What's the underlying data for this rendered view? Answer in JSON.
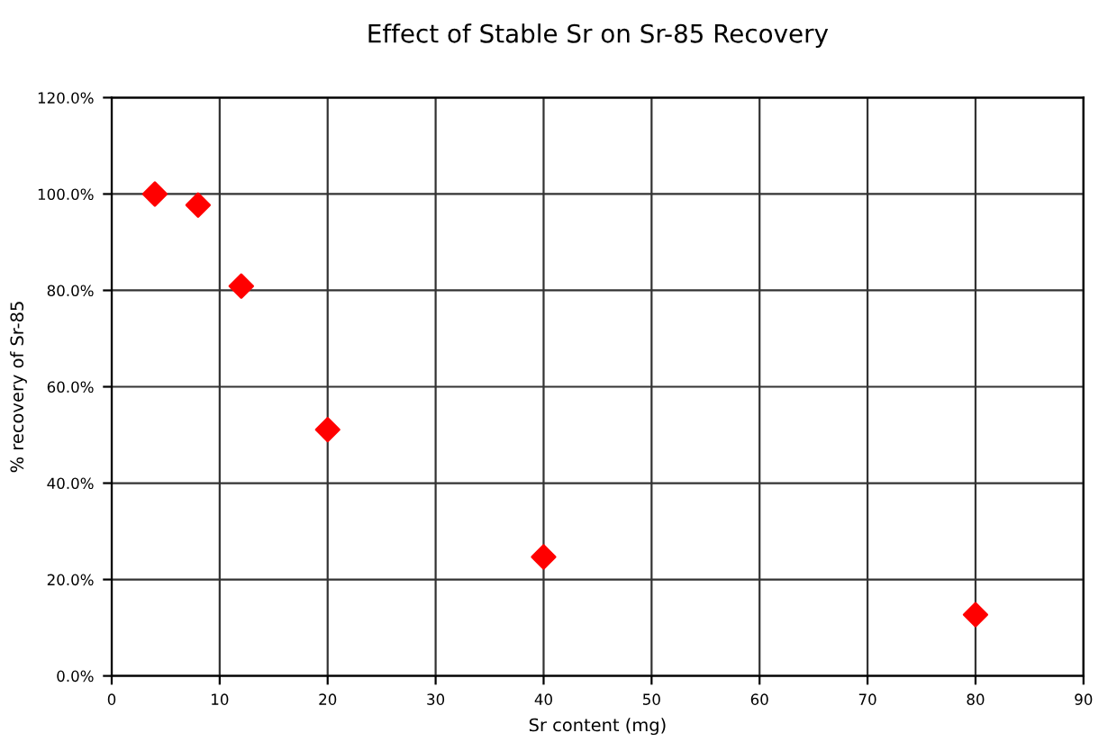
{
  "chart_data": {
    "type": "scatter",
    "title": "Effect of Stable Sr on Sr-85 Recovery",
    "xlabel": "Sr content (mg)",
    "ylabel": "% recovery of Sr-85",
    "x": [
      4,
      8,
      12,
      20,
      40,
      80
    ],
    "series": [
      {
        "color": "#ff0000",
        "values": [
          100,
          97.7,
          80.9,
          51.1,
          24.7,
          12.7
        ]
      }
    ],
    "xlim": [
      0,
      90
    ],
    "xticks": [
      0,
      10,
      20,
      30,
      40,
      50,
      60,
      70,
      80,
      90
    ],
    "ylim": [
      0,
      120
    ],
    "yticks": [
      {
        "value": 0,
        "label": "0.0%"
      },
      {
        "value": 20,
        "label": "20.0%"
      },
      {
        "value": 40,
        "label": "40.0%"
      },
      {
        "value": 60,
        "label": "60.0%"
      },
      {
        "value": 80,
        "label": "80.0%"
      },
      {
        "value": 100,
        "label": "100.0%"
      },
      {
        "value": 120,
        "label": "120.0%"
      }
    ],
    "grid": true,
    "marker": "diamond"
  }
}
